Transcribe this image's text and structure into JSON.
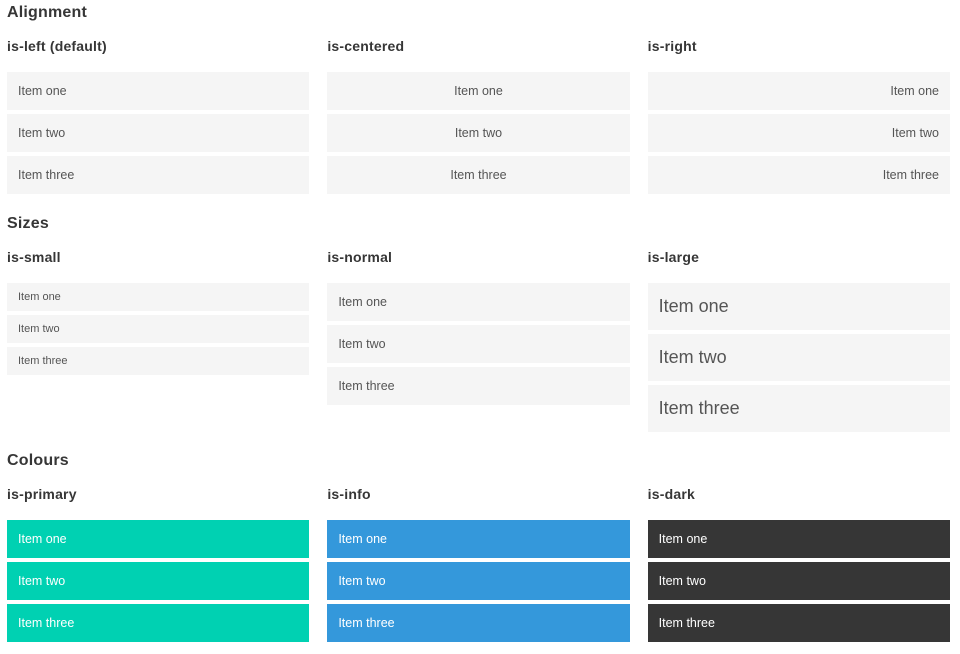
{
  "colors": {
    "primary": "#00d1b2",
    "info": "#3498db",
    "dark": "#363636",
    "item_bg": "#f5f5f5",
    "heading": "#363636",
    "item_text": "#555555",
    "item_text_on_color": "#ffffff"
  },
  "sections": [
    {
      "title": "Alignment",
      "examples": [
        {
          "label": "is-left (default)",
          "items": [
            "Item one",
            "Item two",
            "Item three"
          ]
        },
        {
          "label": "is-centered",
          "items": [
            "Item one",
            "Item two",
            "Item three"
          ]
        },
        {
          "label": "is-right",
          "items": [
            "Item one",
            "Item two",
            "Item three"
          ]
        }
      ]
    },
    {
      "title": "Sizes",
      "examples": [
        {
          "label": "is-small",
          "items": [
            "Item one",
            "Item two",
            "Item three"
          ]
        },
        {
          "label": "is-normal",
          "items": [
            "Item one",
            "Item two",
            "Item three"
          ]
        },
        {
          "label": "is-large",
          "items": [
            "Item one",
            "Item two",
            "Item three"
          ]
        }
      ]
    },
    {
      "title": "Colours",
      "examples": [
        {
          "label": "is-primary",
          "items": [
            "Item one",
            "Item two",
            "Item three"
          ]
        },
        {
          "label": "is-info",
          "items": [
            "Item one",
            "Item two",
            "Item three"
          ]
        },
        {
          "label": "is-dark",
          "items": [
            "Item one",
            "Item two",
            "Item three"
          ]
        }
      ]
    }
  ]
}
